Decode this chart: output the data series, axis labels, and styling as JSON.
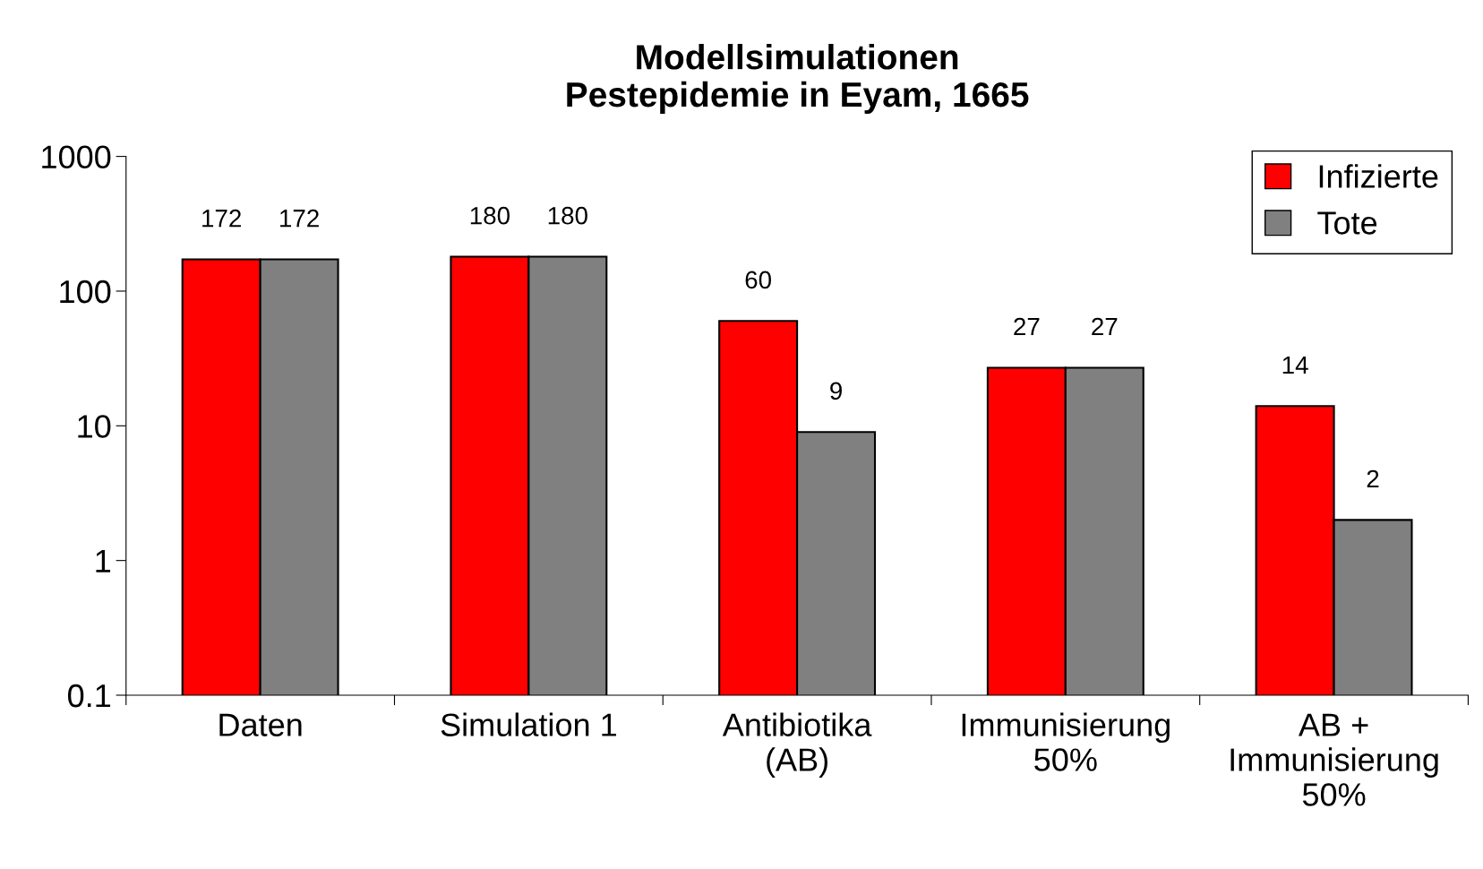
{
  "chart_data": {
    "type": "bar",
    "title": "Modellsimulationen\nPestepidemie in Eyam, 1665",
    "categories": [
      "Daten",
      "Simulation 1",
      "Antibiotika\n(AB)",
      "Immunisierung\n50%",
      "AB +\nImmunisierung\n50%"
    ],
    "series": [
      {
        "name": "Infizierte",
        "color": "#ff0000",
        "values": [
          172,
          180,
          60,
          27,
          14
        ]
      },
      {
        "name": "Tote",
        "color": "#808080",
        "values": [
          172,
          180,
          9,
          27,
          2
        ]
      }
    ],
    "log": true,
    "ylim": [
      0.1,
      1000
    ],
    "yticks": [
      0.1,
      1,
      10,
      100,
      1000
    ],
    "data_labels": true,
    "legend": "top right",
    "grid": false
  }
}
